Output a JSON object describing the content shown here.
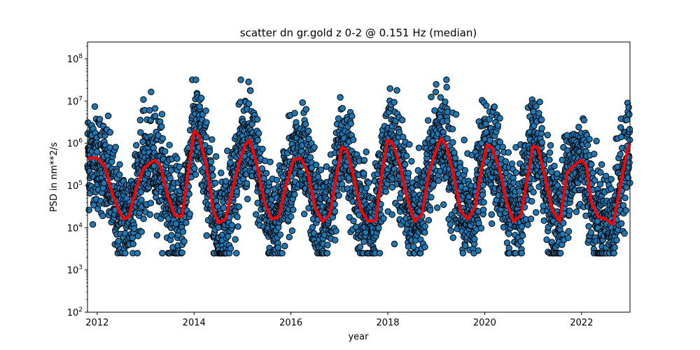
{
  "chart_data": {
    "type": "scatter",
    "title": "scatter dn gr.gold z 0-2 @ 0.151 Hz (median)",
    "xlabel": "year",
    "ylabel": "PSD in nm**2/s",
    "yscale": "log",
    "xlim": [
      2011.8,
      2023.0
    ],
    "ylim": [
      100,
      250000000
    ],
    "x_ticks": [
      2012,
      2014,
      2016,
      2018,
      2020,
      2022
    ],
    "x_tick_labels": [
      "2012",
      "2014",
      "2016",
      "2018",
      "2020",
      "2022"
    ],
    "y_ticks": [
      100,
      1000,
      10000,
      100000,
      1000000,
      10000000,
      100000000
    ],
    "y_tick_labels": [
      "10^2",
      "10^3",
      "10^4",
      "10^5",
      "10^6",
      "10^7",
      "10^8"
    ],
    "grid": false,
    "legend": "none",
    "colors": {
      "scatter_fill": "#1f77b4",
      "scatter_edge": "#000000",
      "median_line": "#ff0000"
    },
    "median_series": {
      "x": [
        2011.8,
        2012.0,
        2012.15,
        2012.3,
        2012.45,
        2012.55,
        2012.65,
        2012.8,
        2012.95,
        2013.1,
        2013.2,
        2013.3,
        2013.45,
        2013.6,
        2013.75,
        2013.9,
        2014.0,
        2014.1,
        2014.25,
        2014.4,
        2014.5,
        2014.65,
        2014.8,
        2014.95,
        2015.05,
        2015.15,
        2015.3,
        2015.45,
        2015.6,
        2015.75,
        2015.9,
        2016.05,
        2016.2,
        2016.35,
        2016.5,
        2016.65,
        2016.8,
        2016.95,
        2017.05,
        2017.15,
        2017.3,
        2017.45,
        2017.6,
        2017.75,
        2017.9,
        2018.0,
        2018.1,
        2018.25,
        2018.4,
        2018.55,
        2018.7,
        2018.85,
        2019.0,
        2019.1,
        2019.2,
        2019.35,
        2019.5,
        2019.65,
        2019.8,
        2019.95,
        2020.05,
        2020.15,
        2020.3,
        2020.45,
        2020.6,
        2020.75,
        2020.9,
        2021.0,
        2021.1,
        2021.25,
        2021.4,
        2021.55,
        2021.7,
        2021.85,
        2022.0,
        2022.1,
        2022.2,
        2022.35,
        2022.5,
        2022.65,
        2022.8,
        2022.95,
        2023.0
      ],
      "y": [
        450000,
        450000,
        300000,
        70000,
        25000,
        16000,
        18000,
        80000,
        250000,
        350000,
        400000,
        300000,
        60000,
        20000,
        18000,
        300000,
        2000000,
        1500000,
        300000,
        25000,
        13000,
        16000,
        90000,
        400000,
        900000,
        1200000,
        300000,
        40000,
        16000,
        18000,
        100000,
        400000,
        450000,
        200000,
        30000,
        14000,
        20000,
        200000,
        800000,
        700000,
        150000,
        25000,
        14000,
        15000,
        300000,
        1200000,
        1000000,
        300000,
        50000,
        14000,
        20000,
        200000,
        700000,
        1300000,
        900000,
        200000,
        25000,
        16000,
        30000,
        300000,
        900000,
        800000,
        250000,
        40000,
        14000,
        20000,
        200000,
        850000,
        800000,
        150000,
        25000,
        14000,
        200000,
        300000,
        400000,
        300000,
        40000,
        18000,
        16000,
        12000,
        100000,
        700000,
        1000000
      ]
    },
    "scatter_summary": {
      "points_per_year": 340,
      "annual_cycle": "peaks near year start, minima mid-year",
      "spread_decades": 0.6,
      "lowest_value": 2500,
      "highest_value": 32000000
    }
  }
}
